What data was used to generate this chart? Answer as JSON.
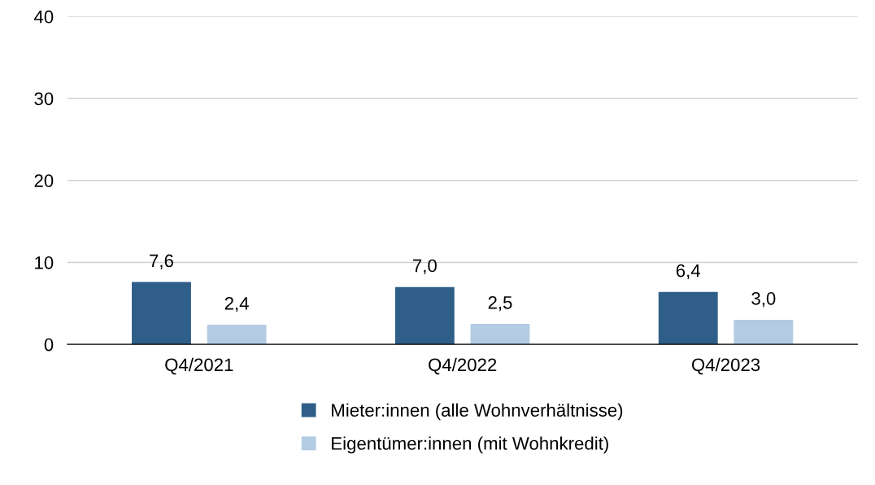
{
  "chart_data": {
    "type": "bar",
    "categories": [
      "Q4/2021",
      "Q4/2022",
      "Q4/2023"
    ],
    "series": [
      {
        "name": "Mieter:innen (alle Wohnverhältnisse)",
        "color": "#2f5f88",
        "values": [
          7.6,
          7.0,
          6.4
        ],
        "value_labels": [
          "7,6",
          "7,0",
          "6,4"
        ]
      },
      {
        "name": "Eigentümer:innen (mit Wohnkredit)",
        "color": "#b3cce3",
        "values": [
          2.4,
          2.5,
          3.0
        ],
        "value_labels": [
          "2,4",
          "2,5",
          "3,0"
        ]
      }
    ],
    "ylim": [
      0,
      40
    ],
    "yticks": [
      0,
      10,
      20,
      30,
      40
    ],
    "grid": "y",
    "legend": "bottom"
  }
}
